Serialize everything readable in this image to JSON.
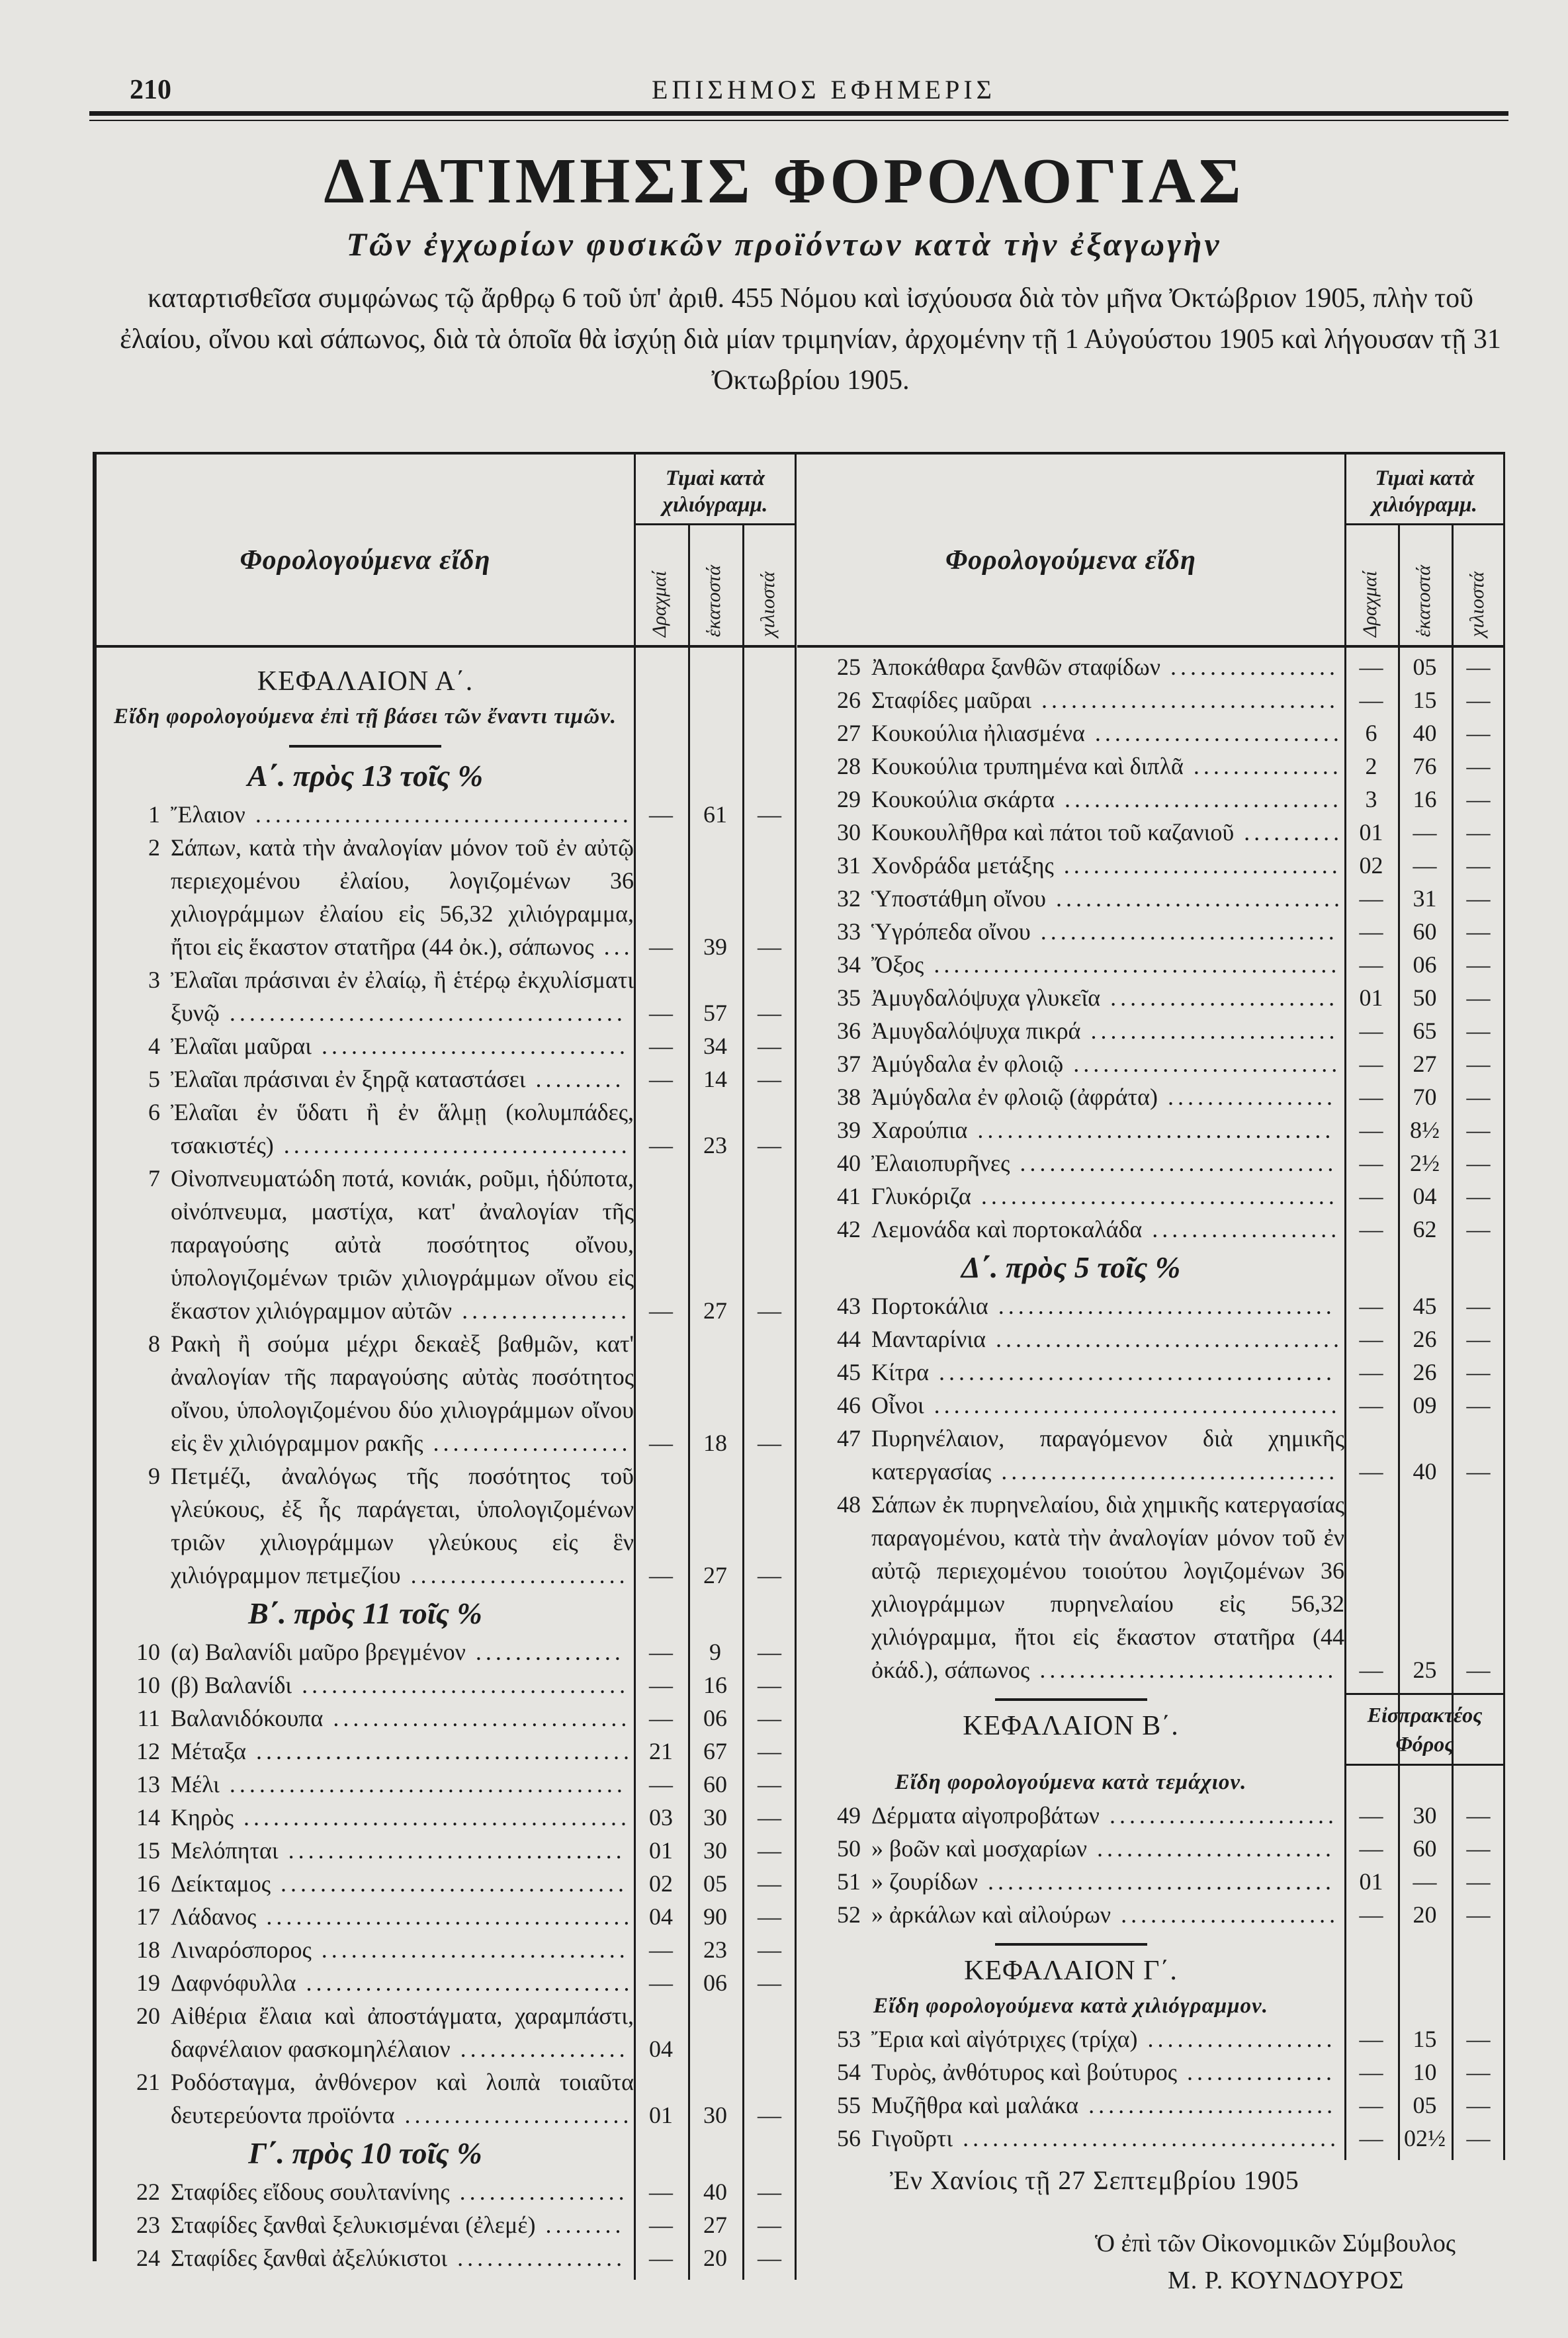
{
  "header": {
    "page_number": "210",
    "gazette_title": "ΕΠΙΣΗΜΟΣ ΕΦΗΜΕΡΙΣ"
  },
  "title": "ΔΙΑΤΙΜΗΣΙΣ ΦΟΡΟΛΟΓΙΑΣ",
  "subtitle": "Τῶν ἐγχωρίων φυσικῶν προϊόντων κατὰ τὴν ἐξαγωγὴν",
  "intro": "καταρτισθεῖσα συμφώνως τῷ ἄρθρῳ 6 τοῦ ὑπ' ἀριθ. 455 Νόμου καὶ ἰσχύουσα διὰ τὸν μῆνα Ὀκτώβριον 1905, πλὴν τοῦ ἐλαίου, οἴνου καὶ σάπωνος, διὰ τὰ ὁποῖα θὰ ἰσχύῃ διὰ μίαν τριμηνίαν, ἀρχομένην τῇ 1 Αὐγούστου 1905 καὶ λήγουσαν τῇ 31 Ὀκτωβρίου 1905.",
  "table_header": {
    "items_label": "Φορολογούμενα εἴδη",
    "price_label": "Τιμαὶ κατὰ χιλιόγραμμ.",
    "subcolumns": [
      "Δραχμαί",
      "ἑκατοστά",
      "χιλιοστά"
    ]
  },
  "left": [
    {
      "type": "chapter",
      "text": "ΚΕΦΑΛΑΙΟΝ Α΄."
    },
    {
      "type": "chapter_sub",
      "text": "Εἴδη φορολογούμενα ἐπὶ τῇ βάσει τῶν ἔναντι τιμῶν."
    },
    {
      "type": "rule"
    },
    {
      "type": "group",
      "text": "Α΄. πρὸς 13 τοῖς %"
    },
    {
      "type": "item",
      "n": "1",
      "text": "Ἔλαιον",
      "v": [
        "—",
        "61",
        "—"
      ]
    },
    {
      "type": "item",
      "n": "2",
      "text": "Σάπων, κατὰ τὴν ἀναλογίαν μόνον τοῦ ἐν αὐτῷ περιεχομένου ἐλαίου, λογιζομένων 36 χιλιογράμμων ἐλαίου εἰς 56,32 χιλιόγραμμα, ἤτοι εἰς ἕκαστον στατῆρα (44 ὀκ.), σάπωνος",
      "v": [
        "—",
        "39",
        "—"
      ]
    },
    {
      "type": "item",
      "n": "3",
      "text": "Ἐλαῖαι πράσιναι ἐν ἐλαίῳ, ἢ ἑτέρῳ ἐκχυλίσματι ξυνῷ",
      "v": [
        "—",
        "57",
        "—"
      ]
    },
    {
      "type": "item",
      "n": "4",
      "text": "Ἐλαῖαι μαῦραι",
      "v": [
        "—",
        "34",
        "—"
      ]
    },
    {
      "type": "item",
      "n": "5",
      "text": "Ἐλαῖαι πράσιναι ἐν ξηρᾷ καταστάσει",
      "v": [
        "—",
        "14",
        "—"
      ]
    },
    {
      "type": "item",
      "n": "6",
      "text": "Ἐλαῖαι ἐν ὕδατι ἢ ἐν ἅλμῃ (κολυμπάδες, τσακιστές)",
      "v": [
        "—",
        "23",
        "—"
      ]
    },
    {
      "type": "item",
      "n": "7",
      "text": "Οἰνοπνευματώδη ποτά, κονιάκ, ροῦμι, ἡδύποτα, οἰνόπνευμα, μαστίχα, κατ' ἀναλογίαν τῆς παραγούσης αὐτὰ ποσότητος οἴνου, ὑπολογιζομένων τριῶν χιλιογράμμων οἴνου εἰς ἕκαστον χιλιόγραμμον αὐτῶν",
      "v": [
        "—",
        "27",
        "—"
      ]
    },
    {
      "type": "item",
      "n": "8",
      "text": "Ρακὴ ἢ σούμα μέχρι δεκαὲξ βαθμῶν, κατ' ἀναλογίαν τῆς παραγούσης αὐτὰς ποσότητος οἴνου, ὑπολογιζομένου δύο χιλιογράμμων οἴνου εἰς ἓν χιλιόγραμμον ρακῆς",
      "v": [
        "—",
        "18",
        "—"
      ]
    },
    {
      "type": "item",
      "n": "9",
      "text": "Πετμέζι, ἀναλόγως τῆς ποσότητος τοῦ γλεύκους, ἐξ ἧς παράγεται, ὑπολογιζομένων τριῶν χιλιογράμμων γλεύκους εἰς ἓν χιλιόγραμμον πετμεζίου",
      "v": [
        "—",
        "27",
        "—"
      ]
    },
    {
      "type": "group",
      "text": "Β΄. πρὸς 11 τοῖς %"
    },
    {
      "type": "item",
      "n": "10",
      "text": "(α) Βαλανίδι μαῦρο βρεγμένον",
      "v": [
        "—",
        "9",
        "—"
      ]
    },
    {
      "type": "item",
      "n": "10",
      "text": "(β) Βαλανίδι",
      "v": [
        "—",
        "16",
        "—"
      ]
    },
    {
      "type": "item",
      "n": "11",
      "text": "Βαλανιδόκουπα",
      "v": [
        "—",
        "06",
        "—"
      ]
    },
    {
      "type": "item",
      "n": "12",
      "text": "Μέταξα",
      "v": [
        "21",
        "67",
        "—"
      ]
    },
    {
      "type": "item",
      "n": "13",
      "text": "Μέλι",
      "v": [
        "—",
        "60",
        "—"
      ]
    },
    {
      "type": "item",
      "n": "14",
      "text": "Κηρὸς",
      "v": [
        "03",
        "30",
        "—"
      ]
    },
    {
      "type": "item",
      "n": "15",
      "text": "Μελόπηται",
      "v": [
        "01",
        "30",
        "—"
      ]
    },
    {
      "type": "item",
      "n": "16",
      "text": "Δείκταμος",
      "v": [
        "02",
        "05",
        "—"
      ]
    },
    {
      "type": "item",
      "n": "17",
      "text": "Λάδανος",
      "v": [
        "04",
        "90",
        "—"
      ]
    },
    {
      "type": "item",
      "n": "18",
      "text": "Λιναρόσπορος",
      "v": [
        "—",
        "23",
        "—"
      ]
    },
    {
      "type": "item",
      "n": "19",
      "text": "Δαφνόφυλλα",
      "v": [
        "—",
        "06",
        "—"
      ]
    },
    {
      "type": "item",
      "n": "20",
      "text": "Αἰθέρια ἔλαια καὶ ἀποστάγματα, χαραμπάστι, δαφνέλαιον φασκομηλέλαιον",
      "v": [
        "04",
        "",
        ""
      ]
    },
    {
      "type": "item",
      "n": "21",
      "text": "Ροδόσταγμα, ἀνθόνερον καὶ λοιπὰ τοιαῦτα δευτερεύοντα προϊόντα",
      "v": [
        "01",
        "30",
        "—"
      ]
    },
    {
      "type": "group",
      "text": "Γ΄. πρὸς 10 τοῖς %"
    },
    {
      "type": "item",
      "n": "22",
      "text": "Σταφίδες εἴδους σουλτανίνης",
      "v": [
        "—",
        "40",
        "—"
      ]
    },
    {
      "type": "item",
      "n": "23",
      "text": "Σταφίδες ξανθαὶ ξελυκισμέναι (ἐλεμέ)",
      "v": [
        "—",
        "27",
        "—"
      ]
    },
    {
      "type": "item",
      "n": "24",
      "text": "Σταφίδες ξανθαὶ ἀξελύκιστοι",
      "v": [
        "—",
        "20",
        "—"
      ]
    }
  ],
  "right": [
    {
      "type": "item",
      "n": "25",
      "text": "Ἀποκάθαρα ξανθῶν σταφίδων",
      "v": [
        "—",
        "05",
        "—"
      ]
    },
    {
      "type": "item",
      "n": "26",
      "text": "Σταφίδες μαῦραι",
      "v": [
        "—",
        "15",
        "—"
      ]
    },
    {
      "type": "item",
      "n": "27",
      "text": "Κουκούλια ἠλιασμένα",
      "v": [
        "6",
        "40",
        "—"
      ]
    },
    {
      "type": "item",
      "n": "28",
      "text": "Κουκούλια τρυπημένα καὶ διπλᾶ",
      "v": [
        "2",
        "76",
        "—"
      ]
    },
    {
      "type": "item",
      "n": "29",
      "text": "Κουκούλια σκάρτα",
      "v": [
        "3",
        "16",
        "—"
      ]
    },
    {
      "type": "item",
      "n": "30",
      "text": "Κουκουλῆθρα καὶ πάτοι τοῦ καζανιοῦ",
      "v": [
        "01",
        "—",
        "—"
      ]
    },
    {
      "type": "item",
      "n": "31",
      "text": "Χονδράδα μετάξης",
      "v": [
        "02",
        "—",
        "—"
      ]
    },
    {
      "type": "item",
      "n": "32",
      "text": "Ὑποστάθμη οἴνου",
      "v": [
        "—",
        "31",
        "—"
      ]
    },
    {
      "type": "item",
      "n": "33",
      "text": "Ὑγρόπεδα οἴνου",
      "v": [
        "—",
        "60",
        "—"
      ]
    },
    {
      "type": "item",
      "n": "34",
      "text": "Ὄξος",
      "v": [
        "—",
        "06",
        "—"
      ]
    },
    {
      "type": "item",
      "n": "35",
      "text": "Ἀμυγδαλόψυχα γλυκεῖα",
      "v": [
        "01",
        "50",
        "—"
      ]
    },
    {
      "type": "item",
      "n": "36",
      "text": "Ἀμυγδαλόψυχα πικρά",
      "v": [
        "—",
        "65",
        "—"
      ]
    },
    {
      "type": "item",
      "n": "37",
      "text": "Ἀμύγδαλα ἐν φλοιῷ",
      "v": [
        "—",
        "27",
        "—"
      ]
    },
    {
      "type": "item",
      "n": "38",
      "text": "Ἀμύγδαλα ἐν φλοιῷ (ἀφράτα)",
      "v": [
        "—",
        "70",
        "—"
      ]
    },
    {
      "type": "item",
      "n": "39",
      "text": "Χαρούπια",
      "v": [
        "—",
        "8½",
        "—"
      ]
    },
    {
      "type": "item",
      "n": "40",
      "text": "Ἐλαιοπυρῆνες",
      "v": [
        "—",
        "2½",
        "—"
      ]
    },
    {
      "type": "item",
      "n": "41",
      "text": "Γλυκόριζα",
      "v": [
        "—",
        "04",
        "—"
      ]
    },
    {
      "type": "item",
      "n": "42",
      "text": "Λεμονάδα καὶ πορτοκαλάδα",
      "v": [
        "—",
        "62",
        "—"
      ]
    },
    {
      "type": "group",
      "text": "Δ΄. πρὸς 5 τοῖς %"
    },
    {
      "type": "item",
      "n": "43",
      "text": "Πορτοκάλια",
      "v": [
        "—",
        "45",
        "—"
      ]
    },
    {
      "type": "item",
      "n": "44",
      "text": "Μανταρίνια",
      "v": [
        "—",
        "26",
        "—"
      ]
    },
    {
      "type": "item",
      "n": "45",
      "text": "Κίτρα",
      "v": [
        "—",
        "26",
        "—"
      ]
    },
    {
      "type": "item",
      "n": "46",
      "text": "Οἶνοι",
      "v": [
        "—",
        "09",
        "—"
      ]
    },
    {
      "type": "item",
      "n": "47",
      "text": "Πυρηνέλαιον, παραγόμενον διὰ χημικῆς κατεργασίας",
      "v": [
        "—",
        "40",
        "—"
      ]
    },
    {
      "type": "item",
      "n": "48",
      "text": "Σάπων ἐκ πυρηνελαίου, διὰ χημικῆς κατεργασίας παραγομένου, κατὰ τὴν ἀναλογίαν μόνον τοῦ ἐν αὐτῷ περιεχομένου τοιούτου λογιζομένων 36 χιλιογράμμων πυρηνελαίου εἰς 56,32 χιλιόγραμμα, ἤτοι εἰς ἕκαστον στατῆρα (44 ὀκάδ.), σάπωνος",
      "v": [
        "—",
        "25",
        "—"
      ]
    },
    {
      "type": "chapter_tax",
      "text": "ΚΕΦΑΛΑΙΟΝ Β΄.",
      "tax_label": "Εἰσπρακτέος Φόρος"
    },
    {
      "type": "chapter_sub",
      "text": "Εἴδη φορολογούμενα κατὰ τεμάχιον."
    },
    {
      "type": "item",
      "n": "49",
      "text": "Δέρματα αἰγοπροβάτων",
      "v": [
        "—",
        "30",
        "—"
      ]
    },
    {
      "type": "item",
      "n": "50",
      "text": "» βοῶν καὶ μοσχαρίων",
      "v": [
        "—",
        "60",
        "—"
      ]
    },
    {
      "type": "item",
      "n": "51",
      "text": "» ζουρίδων",
      "v": [
        "01",
        "—",
        "—"
      ]
    },
    {
      "type": "item",
      "n": "52",
      "text": "» ἀρκάλων καὶ αἰλούρων",
      "v": [
        "—",
        "20",
        "—"
      ]
    },
    {
      "type": "rule"
    },
    {
      "type": "chapter",
      "text": "ΚΕΦΑΛΑΙΟΝ Γ΄."
    },
    {
      "type": "chapter_sub",
      "text": "Εἴδη φορολογούμενα κατὰ χιλιόγραμμον."
    },
    {
      "type": "item",
      "n": "53",
      "text": "Ἔρια καὶ αἰγότριχες (τρίχα)",
      "v": [
        "—",
        "15",
        "—"
      ]
    },
    {
      "type": "item",
      "n": "54",
      "text": "Τυρὸς, ἀνθότυρος καὶ βούτυρος",
      "v": [
        "—",
        "10",
        "—"
      ]
    },
    {
      "type": "item",
      "n": "55",
      "text": "Μυζῆθρα καὶ μαλάκα",
      "v": [
        "—",
        "05",
        "—"
      ]
    },
    {
      "type": "item",
      "n": "56",
      "text": "Γιγοῦρτι",
      "v": [
        "—",
        "02½",
        "—"
      ]
    }
  ],
  "footer": {
    "date_line": "Ἐν Χανίοις τῇ 27 Σεπτεμβρίου 1905",
    "signatory_title": "Ὁ ἐπὶ τῶν Οἰκονομικῶν Σύμβουλος",
    "signatory_name": "Μ. Ρ. ΚΟΥΝΔΟΥΡΟΣ"
  }
}
